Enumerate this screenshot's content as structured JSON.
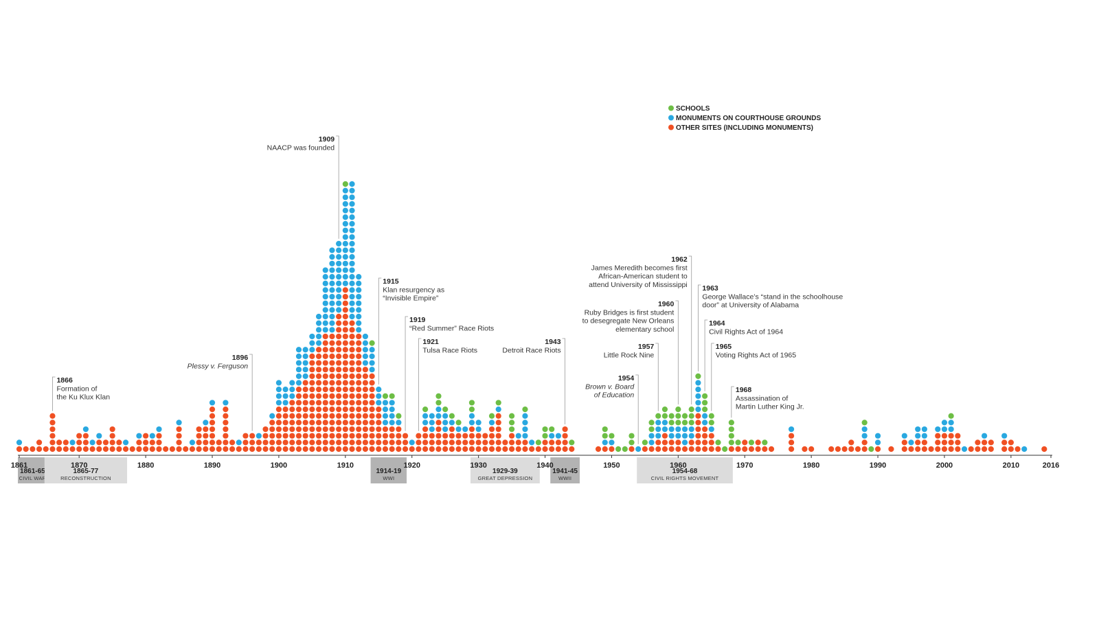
{
  "colors": {
    "schools": "#6dbe45",
    "courthouse": "#29a8e0",
    "other": "#f05023",
    "war_band": "#b3b3b3",
    "era_band": "#dcdcdc",
    "axis": "#333333"
  },
  "legend": [
    {
      "key": "schools",
      "label": "SCHOOLS"
    },
    {
      "key": "courthouse",
      "label": "MONUMENTS ON COURTHOUSE GROUNDS"
    },
    {
      "key": "other",
      "label": "OTHER SITES (INCLUDING MONUMENTS)"
    }
  ],
  "chart_data": {
    "type": "scatter",
    "style": "dot-stacked-histogram",
    "x_unit": "year",
    "xlim": [
      1861,
      2016
    ],
    "x_ticks": [
      "1861",
      "1870",
      "1880",
      "1890",
      "1900",
      "1910",
      "1920",
      "1930",
      "1940",
      "1950",
      "1960",
      "1970",
      "1980",
      "1990",
      "2000",
      "2010",
      "2016"
    ],
    "series_order": [
      "other",
      "courthouse",
      "schools"
    ],
    "counts_by_year": [
      [
        1861,
        1,
        1,
        0
      ],
      [
        1862,
        1,
        0,
        0
      ],
      [
        1863,
        1,
        0,
        0
      ],
      [
        1864,
        2,
        0,
        0
      ],
      [
        1865,
        1,
        0,
        0
      ],
      [
        1866,
        6,
        0,
        0
      ],
      [
        1867,
        2,
        0,
        0
      ],
      [
        1868,
        2,
        0,
        0
      ],
      [
        1869,
        1,
        1,
        0
      ],
      [
        1870,
        3,
        0,
        0
      ],
      [
        1871,
        3,
        1,
        0
      ],
      [
        1872,
        1,
        1,
        0
      ],
      [
        1873,
        2,
        1,
        0
      ],
      [
        1874,
        2,
        0,
        0
      ],
      [
        1875,
        4,
        0,
        0
      ],
      [
        1876,
        2,
        0,
        0
      ],
      [
        1877,
        1,
        1,
        0
      ],
      [
        1878,
        1,
        0,
        0
      ],
      [
        1879,
        2,
        1,
        0
      ],
      [
        1880,
        3,
        0,
        0
      ],
      [
        1881,
        2,
        1,
        0
      ],
      [
        1882,
        3,
        1,
        0
      ],
      [
        1883,
        1,
        0,
        0
      ],
      [
        1884,
        1,
        0,
        0
      ],
      [
        1885,
        4,
        1,
        0
      ],
      [
        1886,
        1,
        0,
        0
      ],
      [
        1887,
        1,
        1,
        0
      ],
      [
        1888,
        4,
        0,
        0
      ],
      [
        1889,
        4,
        1,
        0
      ],
      [
        1890,
        7,
        1,
        0
      ],
      [
        1891,
        2,
        0,
        0
      ],
      [
        1892,
        7,
        1,
        0
      ],
      [
        1893,
        2,
        0,
        0
      ],
      [
        1894,
        1,
        1,
        0
      ],
      [
        1895,
        3,
        0,
        0
      ],
      [
        1896,
        3,
        0,
        0
      ],
      [
        1897,
        2,
        1,
        0
      ],
      [
        1898,
        4,
        0,
        0
      ],
      [
        1899,
        5,
        1,
        0
      ],
      [
        1900,
        7,
        4,
        0
      ],
      [
        1901,
        7,
        3,
        0
      ],
      [
        1902,
        8,
        3,
        0
      ],
      [
        1903,
        10,
        6,
        0
      ],
      [
        1904,
        11,
        5,
        0
      ],
      [
        1905,
        15,
        3,
        0
      ],
      [
        1906,
        16,
        5,
        0
      ],
      [
        1907,
        18,
        10,
        0
      ],
      [
        1908,
        18,
        13,
        0
      ],
      [
        1909,
        21,
        11,
        0
      ],
      [
        1910,
        25,
        15,
        1
      ],
      [
        1911,
        20,
        21,
        0
      ],
      [
        1912,
        18,
        9,
        0
      ],
      [
        1913,
        13,
        5,
        0
      ],
      [
        1914,
        12,
        4,
        1
      ],
      [
        1915,
        7,
        3,
        0
      ],
      [
        1916,
        4,
        4,
        1
      ],
      [
        1917,
        4,
        4,
        1
      ],
      [
        1918,
        4,
        1,
        1
      ],
      [
        1919,
        3,
        0,
        0
      ],
      [
        1920,
        1,
        1,
        0
      ],
      [
        1921,
        3,
        0,
        0
      ],
      [
        1922,
        4,
        2,
        1
      ],
      [
        1923,
        3,
        3,
        0
      ],
      [
        1924,
        5,
        2,
        2
      ],
      [
        1925,
        3,
        3,
        1
      ],
      [
        1926,
        4,
        1,
        1
      ],
      [
        1927,
        3,
        1,
        1
      ],
      [
        1928,
        3,
        1,
        0
      ],
      [
        1929,
        4,
        2,
        2
      ],
      [
        1930,
        3,
        2,
        0
      ],
      [
        1931,
        3,
        0,
        0
      ],
      [
        1932,
        4,
        1,
        1
      ],
      [
        1933,
        6,
        1,
        1
      ],
      [
        1934,
        2,
        0,
        0
      ],
      [
        1935,
        3,
        0,
        3
      ],
      [
        1936,
        2,
        1,
        0
      ],
      [
        1937,
        2,
        4,
        1
      ],
      [
        1938,
        1,
        1,
        0
      ],
      [
        1939,
        1,
        0,
        1
      ],
      [
        1940,
        2,
        0,
        2
      ],
      [
        1941,
        2,
        1,
        1
      ],
      [
        1942,
        2,
        1,
        0
      ],
      [
        1943,
        4,
        0,
        0
      ],
      [
        1944,
        1,
        0,
        1
      ],
      [
        1945,
        0,
        0,
        0
      ],
      [
        1946,
        0,
        0,
        0
      ],
      [
        1947,
        0,
        0,
        0
      ],
      [
        1948,
        1,
        0,
        0
      ],
      [
        1949,
        1,
        1,
        2
      ],
      [
        1950,
        1,
        1,
        1
      ],
      [
        1951,
        0,
        0,
        1
      ],
      [
        1952,
        0,
        0,
        1
      ],
      [
        1953,
        1,
        0,
        2
      ],
      [
        1954,
        0,
        1,
        0
      ],
      [
        1955,
        1,
        0,
        1
      ],
      [
        1956,
        1,
        2,
        2
      ],
      [
        1957,
        2,
        3,
        1
      ],
      [
        1958,
        3,
        2,
        2
      ],
      [
        1959,
        2,
        2,
        2
      ],
      [
        1960,
        2,
        2,
        3
      ],
      [
        1961,
        1,
        3,
        2
      ],
      [
        1962,
        2,
        2,
        3
      ],
      [
        1963,
        6,
        5,
        1
      ],
      [
        1964,
        4,
        2,
        3
      ],
      [
        1965,
        3,
        1,
        2
      ],
      [
        1966,
        1,
        0,
        1
      ],
      [
        1967,
        0,
        0,
        1
      ],
      [
        1968,
        1,
        0,
        4
      ],
      [
        1969,
        1,
        0,
        1
      ],
      [
        1970,
        2,
        0,
        0
      ],
      [
        1971,
        1,
        0,
        1
      ],
      [
        1972,
        2,
        0,
        0
      ],
      [
        1973,
        1,
        0,
        1
      ],
      [
        1974,
        1,
        0,
        0
      ],
      [
        1975,
        0,
        0,
        0
      ],
      [
        1976,
        0,
        0,
        0
      ],
      [
        1977,
        3,
        1,
        0
      ],
      [
        1978,
        0,
        0,
        0
      ],
      [
        1979,
        1,
        0,
        0
      ],
      [
        1980,
        1,
        0,
        0
      ],
      [
        1981,
        0,
        0,
        0
      ],
      [
        1982,
        0,
        0,
        0
      ],
      [
        1983,
        1,
        0,
        0
      ],
      [
        1984,
        1,
        0,
        0
      ],
      [
        1985,
        1,
        0,
        0
      ],
      [
        1986,
        2,
        0,
        0
      ],
      [
        1987,
        1,
        0,
        0
      ],
      [
        1988,
        2,
        2,
        1
      ],
      [
        1989,
        0,
        0,
        1
      ],
      [
        1990,
        1,
        2,
        0
      ],
      [
        1991,
        0,
        0,
        0
      ],
      [
        1992,
        1,
        0,
        0
      ],
      [
        1993,
        0,
        0,
        0
      ],
      [
        1994,
        2,
        1,
        0
      ],
      [
        1995,
        1,
        1,
        0
      ],
      [
        1996,
        2,
        2,
        0
      ],
      [
        1997,
        2,
        2,
        0
      ],
      [
        1998,
        1,
        0,
        0
      ],
      [
        1999,
        3,
        1,
        0
      ],
      [
        2000,
        3,
        2,
        0
      ],
      [
        2001,
        3,
        2,
        1
      ],
      [
        2002,
        3,
        0,
        0
      ],
      [
        2003,
        0,
        1,
        0
      ],
      [
        2004,
        1,
        0,
        0
      ],
      [
        2005,
        2,
        0,
        0
      ],
      [
        2006,
        2,
        1,
        0
      ],
      [
        2007,
        2,
        0,
        0
      ],
      [
        2008,
        0,
        0,
        0
      ],
      [
        2009,
        2,
        1,
        0
      ],
      [
        2010,
        2,
        0,
        0
      ],
      [
        2011,
        1,
        0,
        0
      ],
      [
        2012,
        0,
        1,
        0
      ],
      [
        2013,
        0,
        0,
        0
      ],
      [
        2014,
        0,
        0,
        0
      ],
      [
        2015,
        1,
        0,
        0
      ],
      [
        2016,
        0,
        0,
        0
      ]
    ],
    "eras": [
      {
        "start": 1861,
        "end": 1865,
        "label": "1861-65",
        "sub": "CIVIL WAR",
        "kind": "war"
      },
      {
        "start": 1865,
        "end": 1877,
        "label": "1865-77",
        "sub": "RECONSTRUCTION",
        "kind": "era"
      },
      {
        "start": 1914,
        "end": 1919,
        "label": "1914-19",
        "sub": "WWI",
        "kind": "war"
      },
      {
        "start": 1929,
        "end": 1939,
        "label": "1929-39",
        "sub": "GREAT DEPRESSION",
        "kind": "era"
      },
      {
        "start": 1941,
        "end": 1945,
        "label": "1941-45",
        "sub": "WWII",
        "kind": "war"
      },
      {
        "start": 1954,
        "end": 1968,
        "label": "1954-68",
        "sub": "CIVIL RIGHTS MOVEMENT",
        "kind": "era"
      }
    ],
    "annotations": [
      {
        "year": 1866,
        "label_year": "1866",
        "lines": [
          "Formation of",
          "the Ku Klux Klan"
        ],
        "side": "right",
        "italic": false
      },
      {
        "year": 1896,
        "label_year": "1896",
        "lines": [
          "Plessy v. Ferguson"
        ],
        "side": "left",
        "italic": true
      },
      {
        "year": 1909,
        "label_year": "1909",
        "lines": [
          "NAACP was founded"
        ],
        "side": "left",
        "italic": false
      },
      {
        "year": 1915,
        "label_year": "1915",
        "lines": [
          "Klan resurgency as",
          "“Invisible Empire”"
        ],
        "side": "right",
        "italic": false
      },
      {
        "year": 1919,
        "label_year": "1919",
        "lines": [
          "“Red Summer” Race Riots"
        ],
        "side": "right",
        "italic": false
      },
      {
        "year": 1921,
        "label_year": "1921",
        "lines": [
          "Tulsa Race Riots"
        ],
        "side": "right",
        "italic": false
      },
      {
        "year": 1943,
        "label_year": "1943",
        "lines": [
          "Detroit Race Riots"
        ],
        "side": "left",
        "italic": false
      },
      {
        "year": 1954,
        "label_year": "1954",
        "lines": [
          "Brown v. Board",
          "of Education"
        ],
        "side": "left",
        "italic": true
      },
      {
        "year": 1957,
        "label_year": "1957",
        "lines": [
          "Little Rock Nine"
        ],
        "side": "left",
        "italic": false
      },
      {
        "year": 1960,
        "label_year": "1960",
        "lines": [
          "Ruby Bridges is first student",
          "to desegregate New Orleans",
          "elementary school"
        ],
        "side": "left",
        "italic": false
      },
      {
        "year": 1962,
        "label_year": "1962",
        "lines": [
          "James Meredith becomes first",
          "African-American student to",
          "attend University of Mississippi"
        ],
        "side": "left",
        "italic": false
      },
      {
        "year": 1963,
        "label_year": "1963",
        "lines": [
          "George Wallace’s “stand in the schoolhouse",
          "door” at University of Alabama"
        ],
        "side": "right",
        "italic": false
      },
      {
        "year": 1964,
        "label_year": "1964",
        "lines": [
          "Civil Rights Act of 1964"
        ],
        "side": "right",
        "italic": false
      },
      {
        "year": 1965,
        "label_year": "1965",
        "lines": [
          "Voting Rights Act of 1965"
        ],
        "side": "right",
        "italic": false
      },
      {
        "year": 1968,
        "label_year": "1968",
        "lines": [
          "Assassination of",
          "Martin Luther King Jr."
        ],
        "side": "right",
        "italic": false
      }
    ]
  }
}
